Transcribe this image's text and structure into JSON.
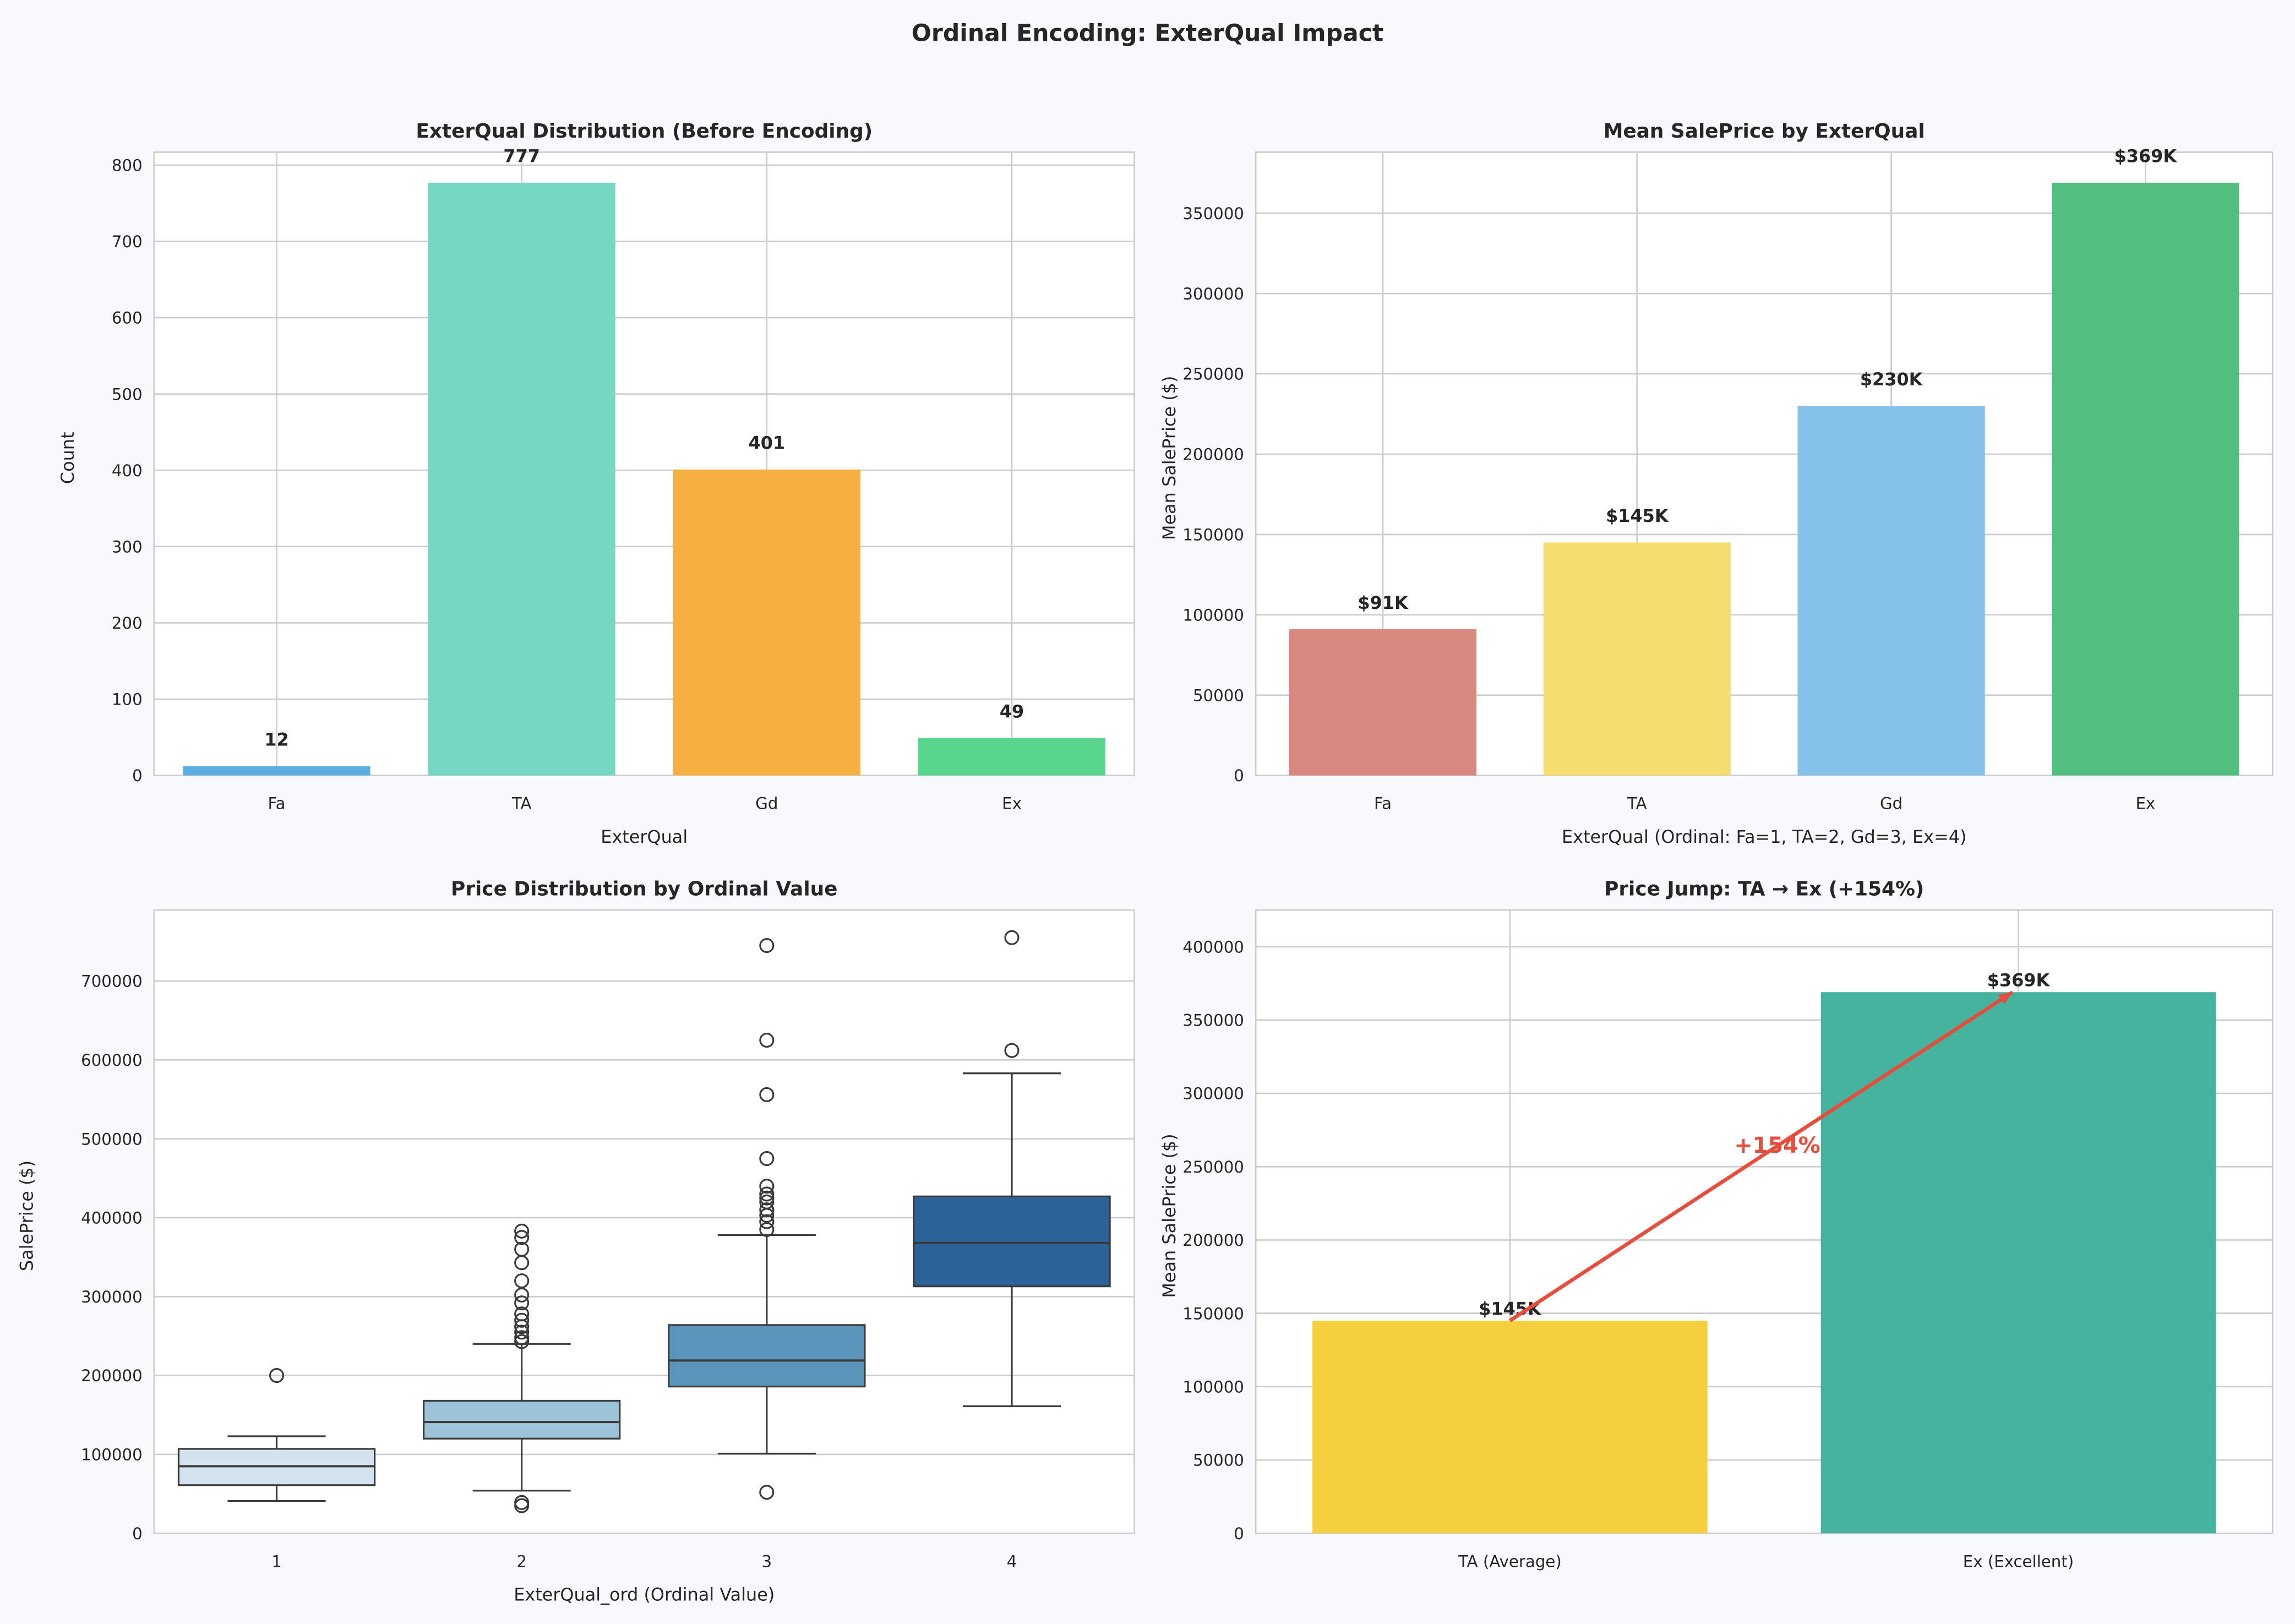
{
  "suptitle": "Ordinal Encoding: ExterQual Impact",
  "chart_data": [
    {
      "type": "bar",
      "title": "ExterQual Distribution (Before Encoding)",
      "xlabel": "ExterQual",
      "ylabel": "Count",
      "categories": [
        "Fa",
        "TA",
        "Gd",
        "Ex"
      ],
      "values": [
        12,
        777,
        401,
        49
      ],
      "data_labels": [
        "12",
        "777",
        "401",
        "49"
      ],
      "colors": [
        "#5DADE2",
        "#76D7C4",
        "#F5B041",
        "#58D68D"
      ],
      "ylim": [
        0,
        817
      ],
      "yticks": [
        0,
        100,
        200,
        300,
        400,
        500,
        600,
        700,
        800
      ],
      "grid": true
    },
    {
      "type": "bar",
      "title": "Mean SalePrice by ExterQual",
      "xlabel": "ExterQual (Ordinal: Fa=1, TA=2, Gd=3, Ex=4)",
      "ylabel": "Mean SalePrice ($)",
      "categories": [
        "Fa",
        "TA",
        "Gd",
        "Ex"
      ],
      "values": [
        91000,
        145000,
        230000,
        369000
      ],
      "data_labels": [
        "$91K",
        "$145K",
        "$230K",
        "$369K"
      ],
      "colors": [
        "#D98880",
        "#F7DC6F",
        "#85C1E9",
        "#52BE80"
      ],
      "ylim": [
        0,
        388000
      ],
      "yticks": [
        0,
        50000,
        100000,
        150000,
        200000,
        250000,
        300000,
        350000
      ],
      "grid": true
    },
    {
      "type": "box",
      "title": "Price Distribution by Ordinal Value",
      "xlabel": "ExterQual_ord (Ordinal Value)",
      "ylabel": "SalePrice ($)",
      "categories": [
        "1",
        "2",
        "3",
        "4"
      ],
      "boxes": [
        {
          "whislo": 41000,
          "q1": 61000,
          "med": 85000,
          "q3": 107000,
          "whishi": 123000,
          "fliers": [
            200000
          ]
        },
        {
          "whislo": 54000,
          "q1": 120000,
          "med": 141000,
          "q3": 168000,
          "whishi": 240000,
          "fliers": [
            35000,
            39000,
            243000,
            248000,
            255000,
            262000,
            270000,
            278000,
            292000,
            302000,
            320000,
            343000,
            360000,
            375000,
            383000
          ]
        },
        {
          "whislo": 101000,
          "q1": 186000,
          "med": 219000,
          "q3": 264000,
          "whishi": 378000,
          "fliers": [
            52000,
            385000,
            395000,
            403000,
            410000,
            420000,
            425000,
            430000,
            440000,
            475000,
            556000,
            625000,
            745000
          ]
        },
        {
          "whislo": 161000,
          "q1": 313000,
          "med": 368000,
          "q3": 427000,
          "whishi": 583000,
          "fliers": [
            612000,
            755000
          ]
        }
      ],
      "colors": [
        "#D4E2F0",
        "#9CC3D8",
        "#5C95BC",
        "#2B6399"
      ],
      "ylim": [
        0,
        790000
      ],
      "yticks": [
        0,
        100000,
        200000,
        300000,
        400000,
        500000,
        600000,
        700000
      ],
      "grid": true
    },
    {
      "type": "bar",
      "title": "Price Jump: TA → Ex (+154%)",
      "xlabel": "",
      "ylabel": "Mean SalePrice ($)",
      "categories": [
        "TA (Average)",
        "Ex (Excellent)"
      ],
      "values": [
        145000,
        369000
      ],
      "data_labels": [
        "$145K",
        "$369K"
      ],
      "colors": [
        "#F4D03F",
        "#45B39D"
      ],
      "ylim": [
        0,
        425000
      ],
      "yticks": [
        0,
        50000,
        100000,
        150000,
        200000,
        250000,
        300000,
        350000,
        400000
      ],
      "annotation": {
        "text": "+154%",
        "color": "#E74C3C"
      },
      "grid": true
    }
  ]
}
